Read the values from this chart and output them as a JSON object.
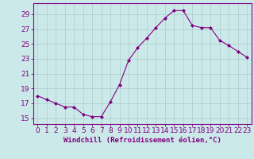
{
  "x": [
    0,
    1,
    2,
    3,
    4,
    5,
    6,
    7,
    8,
    9,
    10,
    11,
    12,
    13,
    14,
    15,
    16,
    17,
    18,
    19,
    20,
    21,
    22,
    23
  ],
  "y": [
    18.0,
    17.5,
    17.0,
    16.5,
    16.5,
    15.5,
    15.2,
    15.2,
    17.2,
    19.5,
    22.8,
    24.5,
    25.8,
    27.2,
    28.5,
    29.5,
    29.5,
    27.5,
    27.2,
    27.2,
    25.5,
    24.8,
    24.0,
    23.2
  ],
  "line_color": "#800080",
  "marker": "D",
  "marker_size": 2.0,
  "bg_color": "#cce9e9",
  "grid_color": "#aacccc",
  "xlabel": "Windchill (Refroidissement éolien,°C)",
  "ylabel_ticks": [
    15,
    17,
    19,
    21,
    23,
    25,
    27,
    29
  ],
  "xlim": [
    -0.5,
    23.5
  ],
  "ylim": [
    14.2,
    30.5
  ],
  "tick_color": "#800080",
  "label_color": "#800080",
  "font_size": 6.5,
  "xlabel_fontsize": 6.5
}
